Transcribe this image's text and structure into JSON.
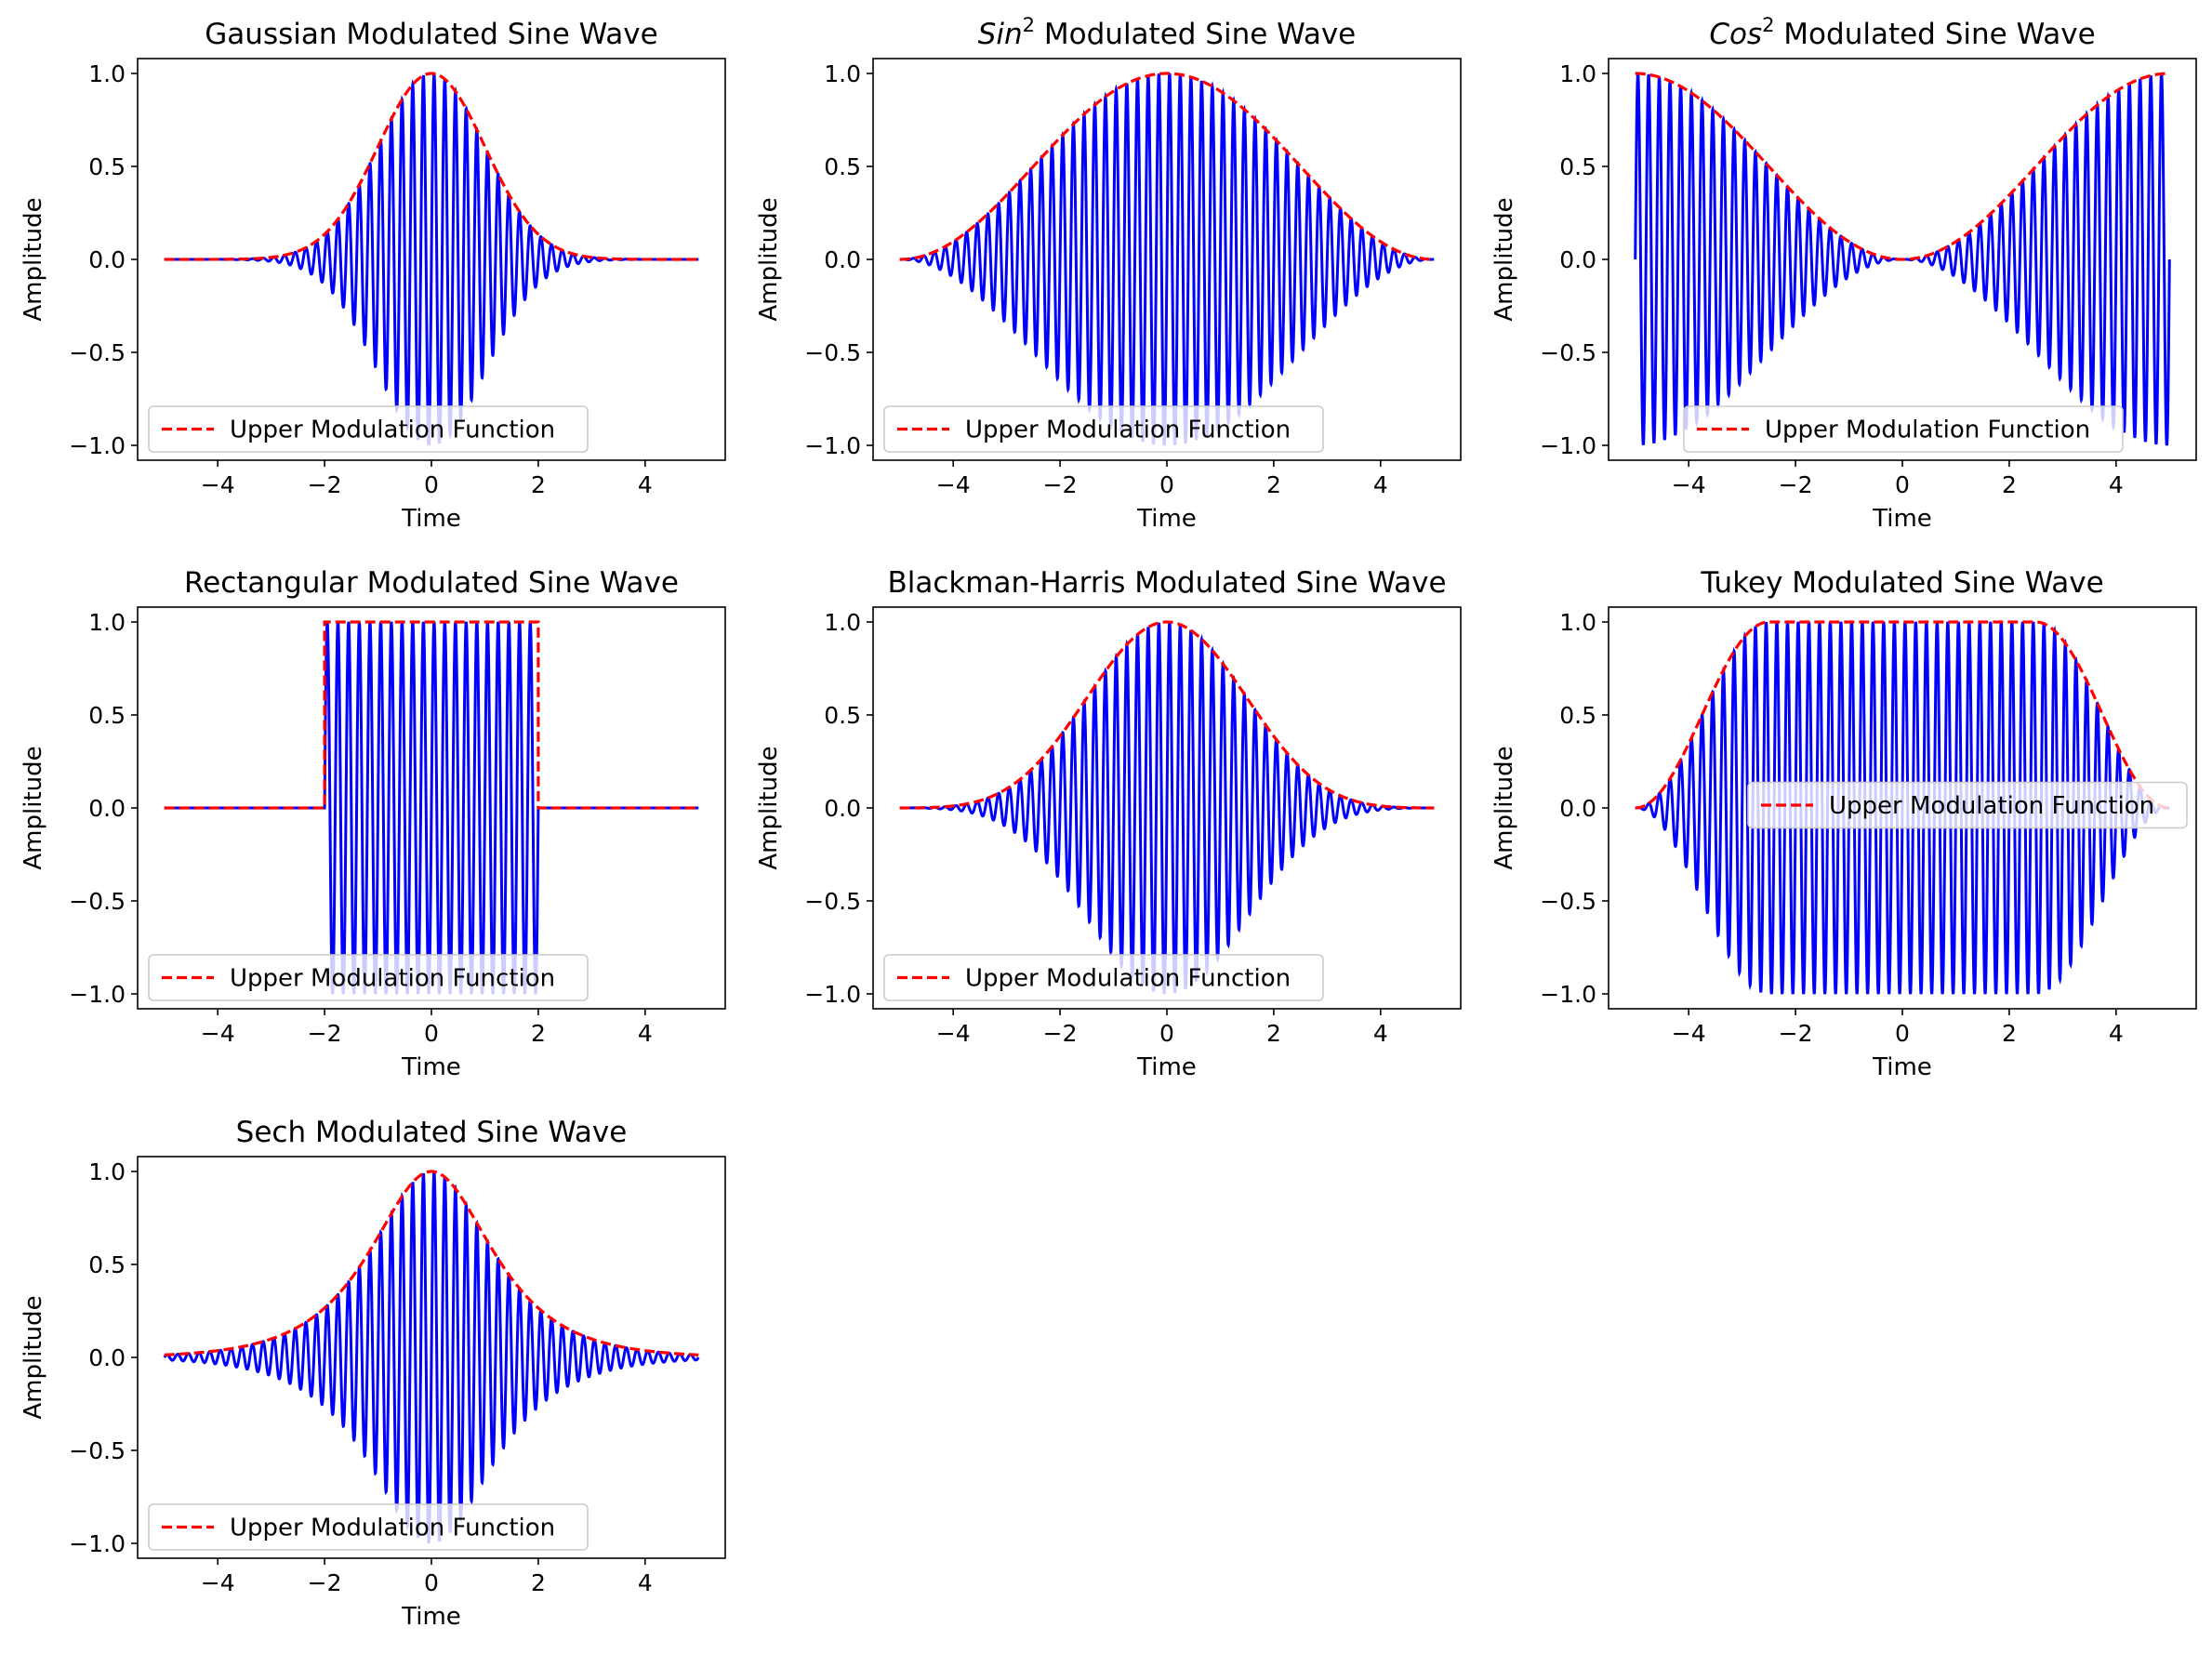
{
  "figure": {
    "background": "#ffffff",
    "carrier_color": "#0000ff",
    "envelope_color": "#ff0000"
  },
  "chart_data": [
    {
      "type": "line",
      "title_prefix": "",
      "title_sup": "",
      "title_main": "Gaussian Modulated Sine Wave",
      "xlabel": "Time",
      "ylabel": "Amplitude",
      "xlim": [
        -5.5,
        5.5
      ],
      "ylim": [
        -1.08,
        1.08
      ],
      "xticks": [
        -4,
        -2,
        0,
        2,
        4
      ],
      "xtick_labels": [
        "−4",
        "−2",
        "0",
        "2",
        "4"
      ],
      "yticks": [
        -1.0,
        -0.5,
        0.0,
        0.5,
        1.0
      ],
      "ytick_labels": [
        "−1.0",
        "−0.5",
        "0.0",
        "0.5",
        "1.0"
      ],
      "legend": {
        "label": "Upper Modulation Function",
        "position": "lower-left"
      },
      "envelope": "gaussian",
      "carrier_cycles_per_unit": 5,
      "t_range": [
        -5,
        5
      ],
      "envelope_samples": {
        "x": [
          -5,
          -3,
          -2,
          -1.5,
          -1,
          -0.5,
          0,
          0.5,
          1,
          1.5,
          2,
          3,
          5
        ],
        "y": [
          0.0,
          0.0,
          0.04,
          0.16,
          0.45,
          0.82,
          1.0,
          0.82,
          0.45,
          0.16,
          0.04,
          0.0,
          0.0
        ]
      }
    },
    {
      "type": "line",
      "title_prefix": "Sin",
      "title_sup": "2",
      "title_main": " Modulated Sine Wave",
      "xlabel": "Time",
      "ylabel": "Amplitude",
      "xlim": [
        -5.5,
        5.5
      ],
      "ylim": [
        -1.08,
        1.08
      ],
      "xticks": [
        -4,
        -2,
        0,
        2,
        4
      ],
      "xtick_labels": [
        "−4",
        "−2",
        "0",
        "2",
        "4"
      ],
      "yticks": [
        -1.0,
        -0.5,
        0.0,
        0.5,
        1.0
      ],
      "ytick_labels": [
        "−1.0",
        "−0.5",
        "0.0",
        "0.5",
        "1.0"
      ],
      "legend": {
        "label": "Upper Modulation Function",
        "position": "lower-left"
      },
      "envelope": "sin2",
      "carrier_cycles_per_unit": 5,
      "t_range": [
        -5,
        5
      ],
      "envelope_samples": {
        "x": [
          -5,
          -4,
          -3,
          -2,
          -1,
          0,
          1,
          2,
          3,
          4,
          5
        ],
        "y": [
          0.0,
          0.1,
          0.35,
          0.65,
          0.9,
          1.0,
          0.9,
          0.65,
          0.35,
          0.1,
          0.0
        ]
      }
    },
    {
      "type": "line",
      "title_prefix": "Cos",
      "title_sup": "2",
      "title_main": " Modulated Sine Wave",
      "xlabel": "Time",
      "ylabel": "Amplitude",
      "xlim": [
        -5.5,
        5.5
      ],
      "ylim": [
        -1.08,
        1.08
      ],
      "xticks": [
        -4,
        -2,
        0,
        2,
        4
      ],
      "xtick_labels": [
        "−4",
        "−2",
        "0",
        "2",
        "4"
      ],
      "yticks": [
        -1.0,
        -0.5,
        0.0,
        0.5,
        1.0
      ],
      "ytick_labels": [
        "−1.0",
        "−0.5",
        "0.0",
        "0.5",
        "1.0"
      ],
      "legend": {
        "label": "Upper Modulation Function",
        "position": "lower-center"
      },
      "envelope": "cos2",
      "carrier_cycles_per_unit": 5,
      "t_range": [
        -5,
        5
      ],
      "envelope_samples": {
        "x": [
          -5,
          -4,
          -3,
          -2,
          -1,
          0,
          1,
          2,
          3,
          4,
          5
        ],
        "y": [
          1.0,
          0.9,
          0.65,
          0.35,
          0.1,
          0.0,
          0.1,
          0.35,
          0.65,
          0.9,
          1.0
        ]
      }
    },
    {
      "type": "line",
      "title_prefix": "",
      "title_sup": "",
      "title_main": "Rectangular Modulated Sine Wave",
      "xlabel": "Time",
      "ylabel": "Amplitude",
      "xlim": [
        -5.5,
        5.5
      ],
      "ylim": [
        -1.08,
        1.08
      ],
      "xticks": [
        -4,
        -2,
        0,
        2,
        4
      ],
      "xtick_labels": [
        "−4",
        "−2",
        "0",
        "2",
        "4"
      ],
      "yticks": [
        -1.0,
        -0.5,
        0.0,
        0.5,
        1.0
      ],
      "ytick_labels": [
        "−1.0",
        "−0.5",
        "0.0",
        "0.5",
        "1.0"
      ],
      "legend": {
        "label": "Upper Modulation Function",
        "position": "lower-left"
      },
      "envelope": "rect",
      "carrier_cycles_per_unit": 5,
      "t_range": [
        -5,
        5
      ],
      "envelope_samples": {
        "x": [
          -5,
          -2,
          -2,
          2,
          2,
          5
        ],
        "y": [
          0.0,
          0.0,
          1.0,
          1.0,
          0.0,
          0.0
        ]
      }
    },
    {
      "type": "line",
      "title_prefix": "",
      "title_sup": "",
      "title_main": "Blackman-Harris Modulated Sine Wave",
      "xlabel": "Time",
      "ylabel": "Amplitude",
      "xlim": [
        -5.5,
        5.5
      ],
      "ylim": [
        -1.08,
        1.08
      ],
      "xticks": [
        -4,
        -2,
        0,
        2,
        4
      ],
      "xtick_labels": [
        "−4",
        "−2",
        "0",
        "2",
        "4"
      ],
      "yticks": [
        -1.0,
        -0.5,
        0.0,
        0.5,
        1.0
      ],
      "ytick_labels": [
        "−1.0",
        "−0.5",
        "0.0",
        "0.5",
        "1.0"
      ],
      "legend": {
        "label": "Upper Modulation Function",
        "position": "lower-left"
      },
      "envelope": "blackmanharris",
      "carrier_cycles_per_unit": 5,
      "t_range": [
        -5,
        5
      ],
      "envelope_samples": {
        "x": [
          -5,
          -4,
          -3,
          -2,
          -1,
          0,
          1,
          2,
          3,
          4,
          5
        ],
        "y": [
          0.0,
          0.01,
          0.08,
          0.33,
          0.75,
          1.0,
          0.75,
          0.33,
          0.08,
          0.01,
          0.0
        ]
      }
    },
    {
      "type": "line",
      "title_prefix": "",
      "title_sup": "",
      "title_main": "Tukey Modulated Sine Wave",
      "xlabel": "Time",
      "ylabel": "Amplitude",
      "xlim": [
        -5.5,
        5.5
      ],
      "ylim": [
        -1.08,
        1.08
      ],
      "xticks": [
        -4,
        -2,
        0,
        2,
        4
      ],
      "xtick_labels": [
        "−4",
        "−2",
        "0",
        "2",
        "4"
      ],
      "yticks": [
        -1.0,
        -0.5,
        0.0,
        0.5,
        1.0
      ],
      "ytick_labels": [
        "−1.0",
        "−0.5",
        "0.0",
        "0.5",
        "1.0"
      ],
      "legend": {
        "label": "Upper Modulation Function",
        "position": "center-right"
      },
      "envelope": "tukey",
      "carrier_cycles_per_unit": 5,
      "t_range": [
        -5,
        5
      ],
      "envelope_samples": {
        "x": [
          -5,
          -4,
          -3,
          -2.5,
          0,
          2.5,
          3,
          4,
          5
        ],
        "y": [
          0.0,
          0.35,
          0.9,
          1.0,
          1.0,
          1.0,
          0.9,
          0.35,
          0.0
        ]
      }
    },
    {
      "type": "line",
      "title_prefix": "",
      "title_sup": "",
      "title_main": "Sech Modulated Sine Wave",
      "xlabel": "Time",
      "ylabel": "Amplitude",
      "xlim": [
        -5.5,
        5.5
      ],
      "ylim": [
        -1.08,
        1.08
      ],
      "xticks": [
        -4,
        -2,
        0,
        2,
        4
      ],
      "xtick_labels": [
        "−4",
        "−2",
        "0",
        "2",
        "4"
      ],
      "yticks": [
        -1.0,
        -0.5,
        0.0,
        0.5,
        1.0
      ],
      "ytick_labels": [
        "−1.0",
        "−0.5",
        "0.0",
        "0.5",
        "1.0"
      ],
      "legend": {
        "label": "Upper Modulation Function",
        "position": "lower-left"
      },
      "envelope": "sech",
      "carrier_cycles_per_unit": 5,
      "t_range": [
        -5,
        5
      ],
      "envelope_samples": {
        "x": [
          -5,
          -4,
          -3,
          -2,
          -1,
          0,
          1,
          2,
          3,
          4,
          5
        ],
        "y": [
          0.01,
          0.04,
          0.1,
          0.27,
          0.65,
          1.0,
          0.65,
          0.27,
          0.1,
          0.04,
          0.01
        ]
      }
    }
  ]
}
